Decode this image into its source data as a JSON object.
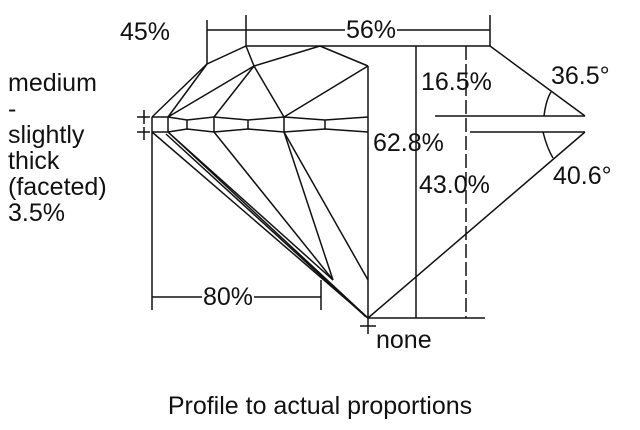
{
  "labels": {
    "crown_angle_width": "45%",
    "table": "56%",
    "girdle": [
      "medium",
      "-",
      "slightly",
      "thick",
      "(faceted)",
      "3.5%"
    ],
    "crown_height": "16.5%",
    "crown_angle": "36.5°",
    "total_depth": "62.8%",
    "pavilion_depth": "43.0%",
    "pavilion_angle": "40.6°",
    "lower_half": "80%",
    "culet": "none"
  },
  "caption": "Profile to actual proportions",
  "colors": {
    "line": "#111111",
    "background": "#ffffff"
  }
}
